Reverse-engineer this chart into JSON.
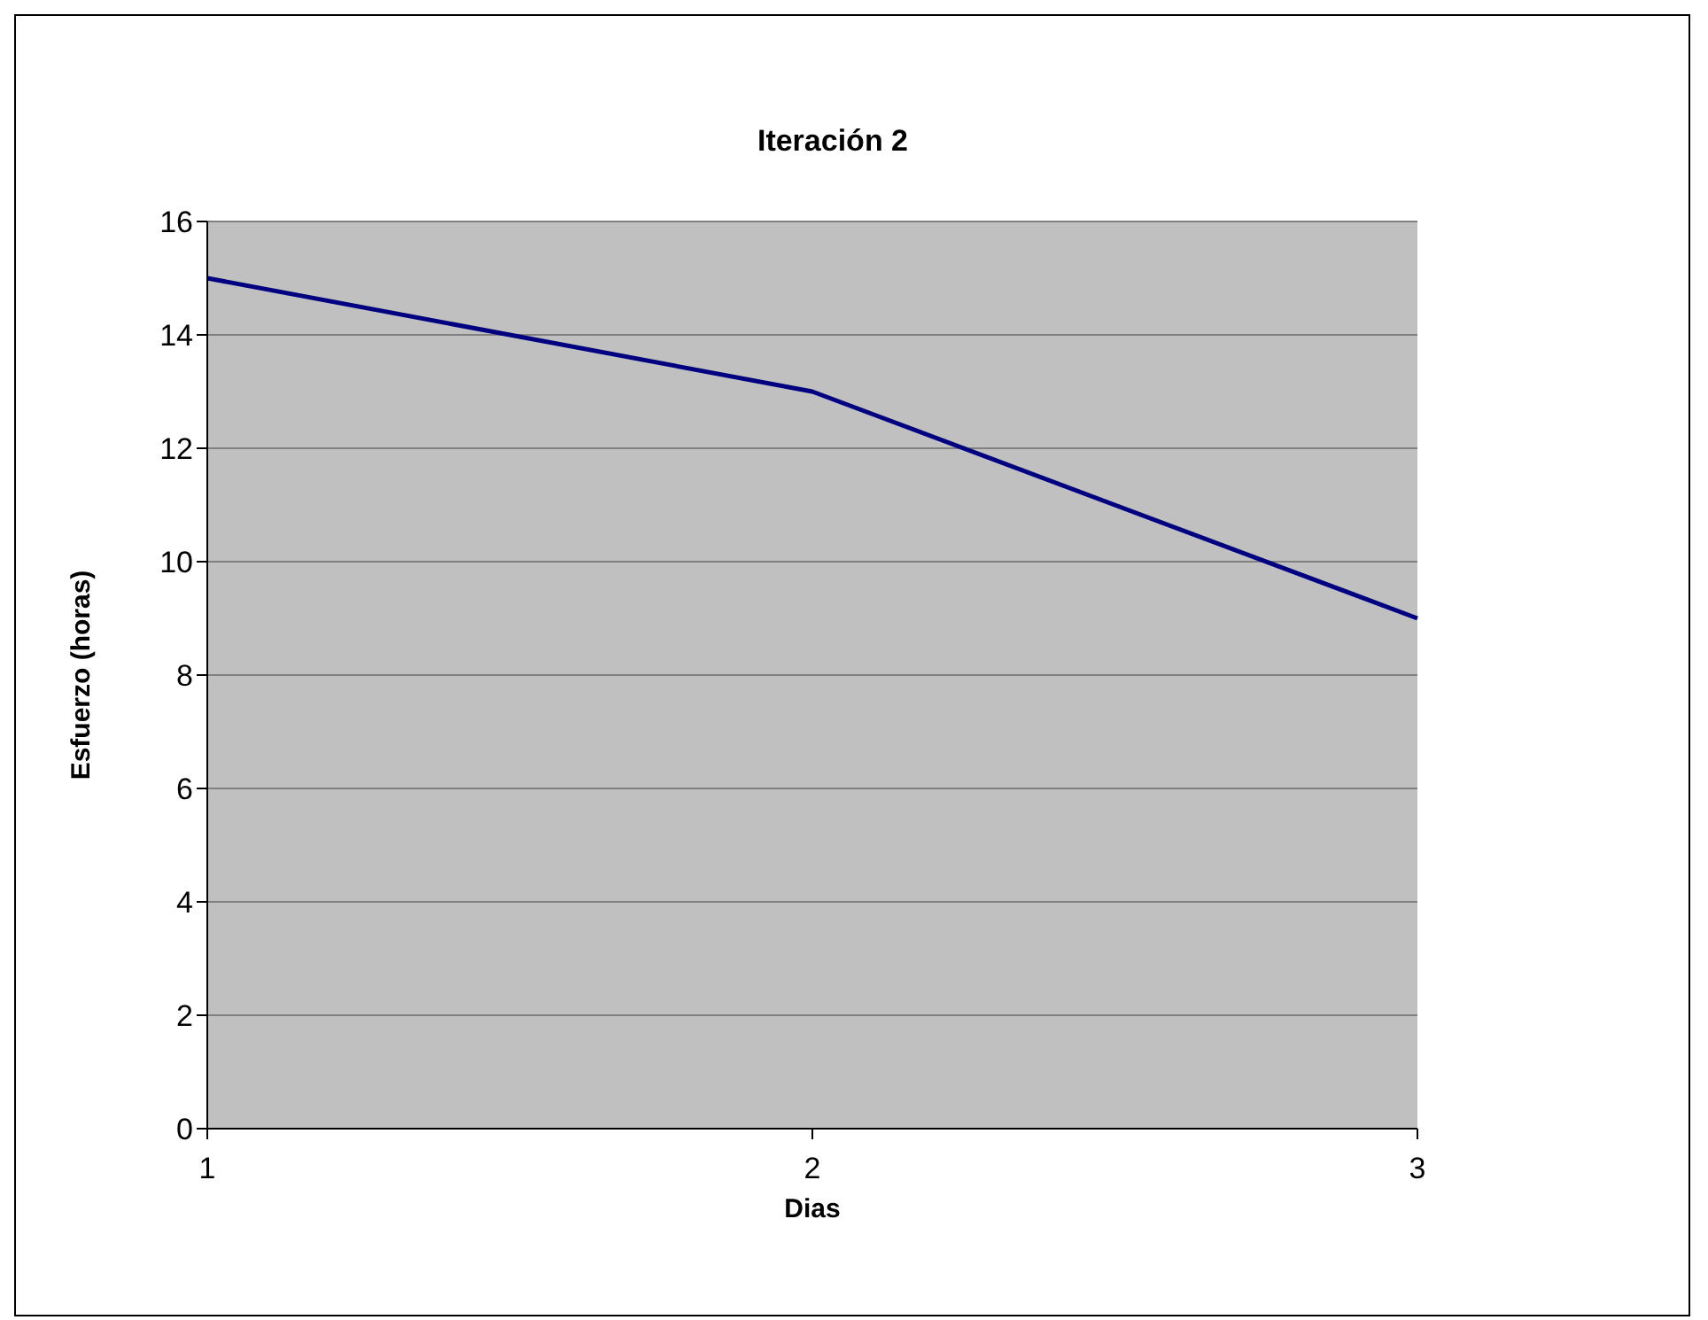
{
  "chart_data": {
    "type": "line",
    "title": "Iteración 2",
    "xlabel": "Dias",
    "ylabel": "Esfuerzo (horas)",
    "categories": [
      "1",
      "2",
      "3"
    ],
    "series": [
      {
        "color": "#000080",
        "values": [
          15,
          13,
          9
        ]
      }
    ],
    "ylim": [
      0,
      16
    ],
    "yticks": [
      0,
      2,
      4,
      6,
      8,
      10,
      12,
      14,
      16
    ],
    "grid": "y",
    "marker": "none",
    "line_style": "solid"
  }
}
